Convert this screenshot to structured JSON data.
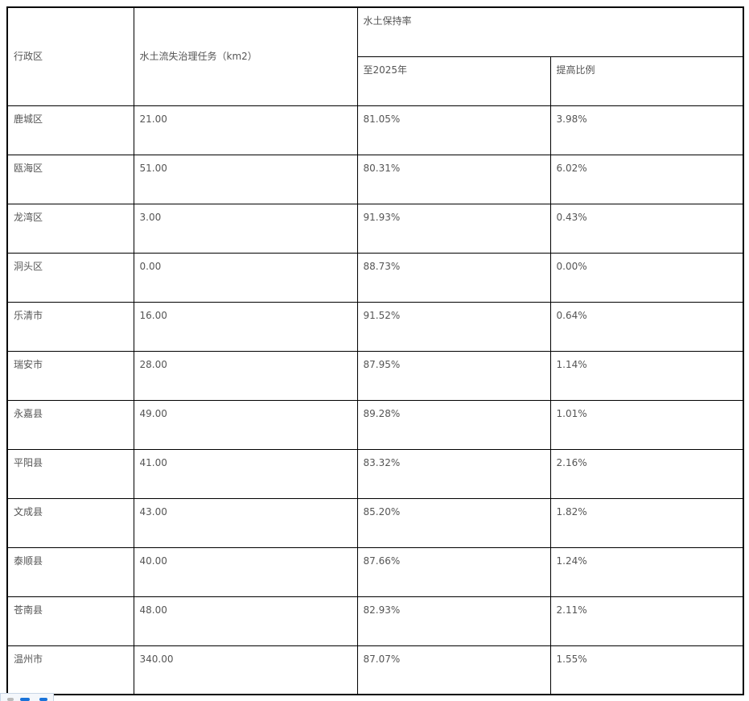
{
  "table": {
    "headers": {
      "district": "行政区",
      "task": "水土流失治理任务（km2）",
      "retention": "水土保持率",
      "by2025": "至2025年",
      "increase": "提高比例"
    },
    "rows": [
      [
        "鹿城区",
        "21.00",
        "81.05%",
        "3.98%"
      ],
      [
        "瓯海区",
        "51.00",
        "80.31%",
        "6.02%"
      ],
      [
        "龙湾区",
        "3.00",
        "91.93%",
        "0.43%"
      ],
      [
        "洞头区",
        "0.00",
        "88.73%",
        "0.00%"
      ],
      [
        "乐清市",
        "16.00",
        "91.52%",
        "0.64%"
      ],
      [
        "瑞安市",
        "28.00",
        "87.95%",
        "1.14%"
      ],
      [
        "永嘉县",
        "49.00",
        "89.28%",
        "1.01%"
      ],
      [
        "平阳县",
        "41.00",
        "83.32%",
        "2.16%"
      ],
      [
        "文成县",
        "43.00",
        "85.20%",
        "1.82%"
      ],
      [
        "泰顺县",
        "40.00",
        "87.66%",
        "1.24%"
      ],
      [
        "苍南县",
        "48.00",
        "82.93%",
        "2.11%"
      ],
      [
        "温州市",
        "340.00",
        "87.07%",
        "1.55%"
      ]
    ]
  },
  "widget": {
    "icon": "share-icon",
    "accent": "#1a73d9"
  }
}
